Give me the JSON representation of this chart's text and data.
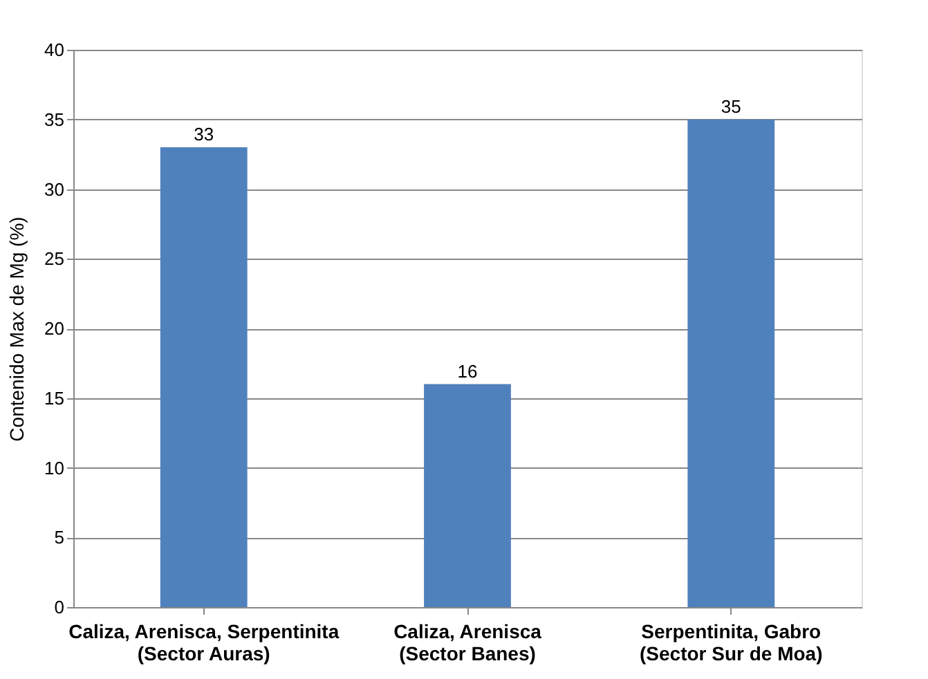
{
  "chart_data": {
    "type": "bar",
    "categories": [
      "Caliza, Arenisca, Serpentinita\n(Sector Auras)",
      "Caliza, Arenisca\n(Sector Banes)",
      "Serpentinita, Gabro\n(Sector Sur de Moa)"
    ],
    "values": [
      33,
      16,
      35
    ],
    "color": "#4f81bd",
    "ylabel": "Contenido Max de Mg (%)",
    "ylim": [
      0,
      40
    ],
    "yticks": [
      0,
      5,
      10,
      15,
      20,
      25,
      30,
      35,
      40
    ],
    "grid": "y",
    "data_labels": true
  }
}
